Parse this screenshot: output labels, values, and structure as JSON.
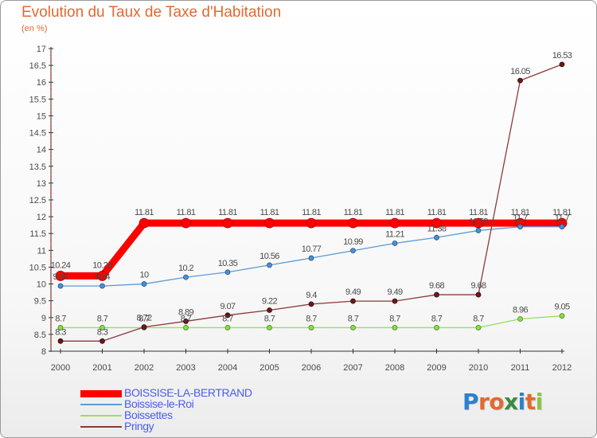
{
  "header": {
    "title": "Evolution du Taux de Taxe d'Habitation",
    "unit": "(en %)"
  },
  "logo": {
    "text": "Proxiti",
    "letters": [
      {
        "char": "P",
        "color": "#2e7fd0"
      },
      {
        "char": "r",
        "color": "#e2692f"
      },
      {
        "char": "o",
        "color": "#e2692f"
      },
      {
        "char": "x",
        "color": "#3c8a3c"
      },
      {
        "char": "i",
        "color": "#2e7fd0"
      },
      {
        "char": "t",
        "color": "#e2692f"
      },
      {
        "char": "i",
        "color": "#8bc34a"
      }
    ]
  },
  "chart_data": {
    "type": "line",
    "title": "Evolution du Taux de Taxe d'Habitation",
    "ylabel": "(en %)",
    "xlabel": "",
    "x": [
      "2000",
      "2001",
      "2002",
      "2003",
      "2004",
      "2005",
      "2006",
      "2007",
      "2008",
      "2009",
      "2010",
      "2011",
      "2012"
    ],
    "ylim": [
      8,
      17
    ],
    "yticks": [
      "8",
      "8.5",
      "9",
      "9.5",
      "10",
      "10.5",
      "11",
      "11.5",
      "12",
      "12.5",
      "13",
      "13.5",
      "14",
      "14.5",
      "15",
      "15.5",
      "16",
      "16.5",
      "17"
    ],
    "grid": false,
    "legend_position": "bottom-left",
    "series": [
      {
        "name": "BOISSISE-LA-BERTRAND",
        "color": "#ff0000",
        "values": [
          10.24,
          10.24,
          11.81,
          11.81,
          11.81,
          11.81,
          11.81,
          11.81,
          11.81,
          11.81,
          11.81,
          11.81,
          11.81
        ],
        "labels": [
          "10.24",
          "10.24",
          "11.81",
          "11.81",
          "11.81",
          "11.81",
          "11.81",
          "11.81",
          "11.81",
          "11.81",
          "11.81",
          "11.81",
          "11.81"
        ]
      },
      {
        "name": "Boissise-le-Roi",
        "color": "#5b9bd5",
        "values": [
          9.94,
          9.94,
          10,
          10.2,
          10.35,
          10.56,
          10.77,
          10.99,
          11.21,
          11.38,
          11.59,
          11.7,
          11.7
        ],
        "labels": [
          "9.94",
          "9.94",
          "10",
          "10.2",
          "10.35",
          "10.56",
          "10.77",
          "10.99",
          "11.21",
          "11.38",
          "11.59",
          "11.7",
          "11.7"
        ]
      },
      {
        "name": "Boissettes",
        "color": "#99dd66",
        "values": [
          8.7,
          8.7,
          8.7,
          8.7,
          8.7,
          8.7,
          8.7,
          8.7,
          8.7,
          8.7,
          8.7,
          8.96,
          9.05
        ],
        "labels": [
          "8.7",
          "8.7",
          "8.7",
          "8.7",
          "8.7",
          "8.7",
          "8.7",
          "8.7",
          "8.7",
          "8.7",
          "8.7",
          "8.96",
          "9.05"
        ]
      },
      {
        "name": "Pringy",
        "color": "#8b3a3a",
        "values": [
          8.3,
          8.3,
          8.72,
          8.89,
          9.07,
          9.22,
          9.4,
          9.49,
          9.49,
          9.68,
          9.68,
          16.05,
          16.53
        ],
        "labels": [
          "8.3",
          "8.3",
          "8.72",
          "8.89",
          "9.07",
          "9.22",
          "9.4",
          "9.49",
          "9.49",
          "9.68",
          "9.68",
          "16.05",
          "16.53"
        ]
      }
    ]
  }
}
